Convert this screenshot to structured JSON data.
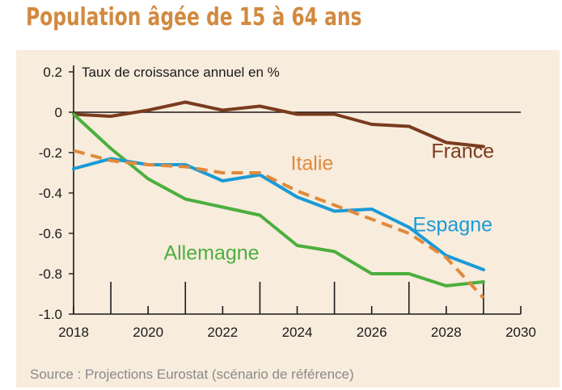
{
  "title": "Population âgée de 15 à 64 ans",
  "source": "Source : Projections Eurostat (scénario de référence)",
  "colors": {
    "title": "#d18a40",
    "background": "#f8ecdd",
    "axis": "#1a1a1a"
  },
  "chart_data": {
    "type": "line",
    "ylabel": "Taux de croissance annuel en %",
    "xlabel": "",
    "xlim": [
      2018,
      2030
    ],
    "ylim": [
      -1.0,
      0.2
    ],
    "xticks": [
      "2018",
      "2020",
      "2022",
      "2024",
      "2026",
      "2028",
      "2030"
    ],
    "yticks": [
      "0.2",
      "0",
      "-0.2",
      "-0.4",
      "-0.6",
      "-0.8",
      "-1.0"
    ],
    "x": [
      2018,
      2019,
      2020,
      2021,
      2022,
      2023,
      2024,
      2025,
      2026,
      2027,
      2028,
      2029
    ],
    "series": [
      {
        "name": "France",
        "color": "#7a3b1e",
        "dash": false,
        "values": [
          -0.01,
          -0.02,
          0.01,
          0.05,
          0.01,
          0.03,
          -0.01,
          -0.01,
          -0.06,
          -0.07,
          -0.15,
          -0.17
        ]
      },
      {
        "name": "Italie",
        "color": "#e08a3c",
        "dash": true,
        "values": [
          -0.19,
          -0.24,
          -0.26,
          -0.27,
          -0.3,
          -0.3,
          -0.39,
          -0.46,
          -0.53,
          -0.6,
          -0.72,
          -0.92
        ]
      },
      {
        "name": "Espagne",
        "color": "#1a9ad6",
        "dash": false,
        "values": [
          -0.28,
          -0.23,
          -0.26,
          -0.26,
          -0.34,
          -0.31,
          -0.42,
          -0.49,
          -0.48,
          -0.57,
          -0.71,
          -0.78
        ]
      },
      {
        "name": "Allemagne",
        "color": "#4caf3e",
        "dash": false,
        "values": [
          -0.01,
          -0.18,
          -0.33,
          -0.43,
          -0.47,
          -0.51,
          -0.66,
          -0.69,
          -0.8,
          -0.8,
          -0.86,
          -0.84
        ]
      }
    ]
  }
}
